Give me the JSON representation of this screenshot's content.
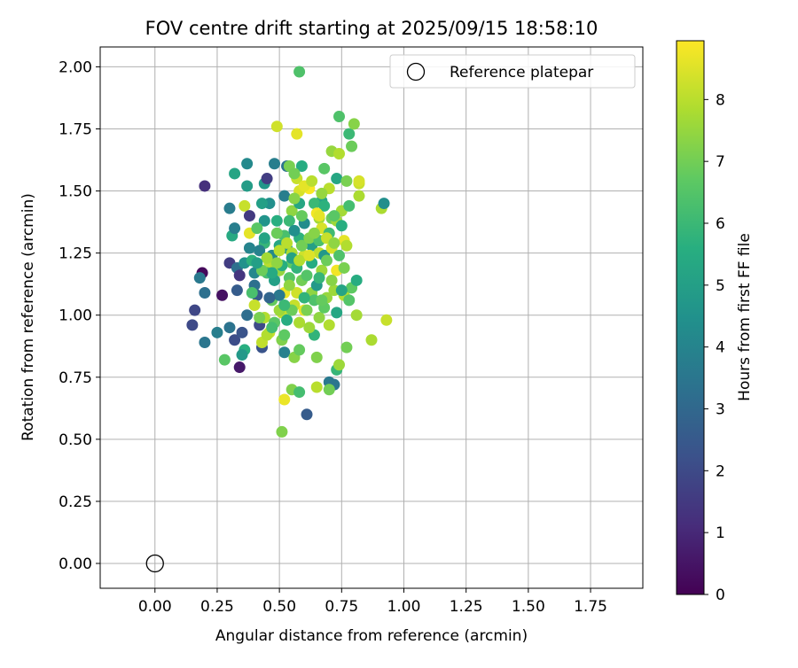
{
  "chart_data": {
    "type": "scatter",
    "title": "FOV centre drift starting at 2025/09/15 18:58:10",
    "xlabel": "Angular distance from reference (arcmin)",
    "ylabel": "Rotation from reference (arcmin)",
    "xlim": [
      -0.22,
      1.96
    ],
    "ylim": [
      -0.1,
      2.08
    ],
    "x_ticks": [
      "0.00",
      "0.25",
      "0.50",
      "0.75",
      "1.00",
      "1.25",
      "1.50",
      "1.75"
    ],
    "y_ticks": [
      "0.00",
      "0.25",
      "0.50",
      "0.75",
      "1.00",
      "1.25",
      "1.50",
      "1.75",
      "2.00"
    ],
    "grid": true,
    "legend": {
      "placement": "top-right",
      "entries": [
        "Reference platepar"
      ]
    },
    "reference_point": {
      "x": 0.0,
      "y": 0.0
    },
    "colorbar": {
      "label": "Hours from first FF file",
      "range": [
        0,
        8.95
      ],
      "ticks": [
        "0",
        "1",
        "2",
        "3",
        "4",
        "5",
        "6",
        "7",
        "8"
      ],
      "colormap": "viridis"
    },
    "series": [
      {
        "values": [
          [
            0.2,
            1.52,
            1.2
          ],
          [
            0.19,
            1.17,
            0.2
          ],
          [
            0.18,
            1.15,
            3.6
          ],
          [
            0.2,
            1.09,
            3.3
          ],
          [
            0.16,
            1.02,
            1.9
          ],
          [
            0.15,
            0.96,
            2.0
          ],
          [
            0.2,
            0.89,
            3.5
          ],
          [
            0.25,
            0.93,
            3.8
          ],
          [
            0.27,
            1.08,
            0.4
          ],
          [
            0.3,
            1.21,
            1.6
          ],
          [
            0.3,
            1.43,
            3.7
          ],
          [
            0.31,
            1.32,
            5.4
          ],
          [
            0.32,
            1.35,
            3.8
          ],
          [
            0.32,
            1.57,
            5.2
          ],
          [
            0.33,
            1.19,
            3.3
          ],
          [
            0.33,
            1.1,
            2.6
          ],
          [
            0.34,
            1.16,
            1.4
          ],
          [
            0.32,
            0.9,
            2.1
          ],
          [
            0.34,
            0.79,
            0.6
          ],
          [
            0.35,
            0.93,
            2.3
          ],
          [
            0.37,
            1.61,
            4.2
          ],
          [
            0.37,
            1.52,
            4.9
          ],
          [
            0.36,
            1.44,
            8.2
          ],
          [
            0.38,
            1.4,
            1.5
          ],
          [
            0.38,
            1.33,
            8.6
          ],
          [
            0.36,
            1.21,
            4.5
          ],
          [
            0.37,
            1.0,
            3.2
          ],
          [
            0.36,
            0.86,
            5.6
          ],
          [
            0.35,
            0.84,
            4.8
          ],
          [
            0.28,
            0.82,
            6.6
          ],
          [
            0.3,
            0.95,
            3.4
          ],
          [
            0.39,
            1.22,
            5.7
          ],
          [
            0.4,
            1.12,
            3.3
          ],
          [
            0.41,
            1.08,
            2.5
          ],
          [
            0.42,
            0.96,
            2.0
          ],
          [
            0.43,
            0.87,
            2.3
          ],
          [
            0.43,
            0.89,
            8.1
          ],
          [
            0.44,
            0.99,
            7.9
          ],
          [
            0.44,
            1.29,
            5.9
          ],
          [
            0.44,
            1.38,
            4.6
          ],
          [
            0.44,
            1.53,
            4.7
          ],
          [
            0.45,
            1.55,
            1.6
          ],
          [
            0.46,
            1.45,
            4.4
          ],
          [
            0.46,
            1.21,
            8.0
          ],
          [
            0.47,
            1.06,
            6.8
          ],
          [
            0.46,
            0.93,
            8.2
          ],
          [
            0.48,
            1.61,
            3.8
          ],
          [
            0.49,
            1.76,
            8.3
          ],
          [
            0.49,
            1.38,
            5.6
          ],
          [
            0.5,
            1.28,
            5.3
          ],
          [
            0.5,
            1.18,
            7.5
          ],
          [
            0.51,
            1.01,
            8.1
          ],
          [
            0.51,
            0.9,
            7.2
          ],
          [
            0.52,
            0.85,
            3.9
          ],
          [
            0.53,
            0.98,
            5.5
          ],
          [
            0.52,
            1.09,
            8.7
          ],
          [
            0.52,
            1.32,
            6.3
          ],
          [
            0.52,
            1.48,
            3.8
          ],
          [
            0.53,
            1.6,
            3.4
          ],
          [
            0.54,
            1.6,
            7.1
          ],
          [
            0.55,
            1.42,
            7.4
          ],
          [
            0.55,
            1.21,
            6.7
          ],
          [
            0.56,
            1.04,
            8.2
          ],
          [
            0.56,
            0.83,
            7.3
          ],
          [
            0.55,
            0.7,
            7.2
          ],
          [
            0.52,
            0.66,
            8.7
          ],
          [
            0.51,
            0.53,
            7.2
          ],
          [
            0.57,
            1.73,
            8.6
          ],
          [
            0.57,
            1.55,
            8.2
          ],
          [
            0.58,
            1.45,
            5.3
          ],
          [
            0.58,
            1.31,
            5.7
          ],
          [
            0.59,
            1.14,
            7.0
          ],
          [
            0.58,
            0.97,
            7.8
          ],
          [
            0.58,
            0.86,
            6.8
          ],
          [
            0.58,
            0.69,
            6.2
          ],
          [
            0.58,
            1.98,
            6.4
          ],
          [
            0.59,
            1.6,
            5.5
          ],
          [
            0.6,
            1.37,
            4.3
          ],
          [
            0.6,
            1.24,
            8.3
          ],
          [
            0.6,
            1.02,
            8.7
          ],
          [
            0.61,
            0.6,
            2.6
          ],
          [
            0.62,
            1.51,
            8.9
          ],
          [
            0.63,
            1.28,
            5.0
          ],
          [
            0.63,
            1.09,
            7.4
          ],
          [
            0.64,
            0.92,
            5.8
          ],
          [
            0.65,
            0.83,
            7.2
          ],
          [
            0.65,
            0.71,
            8.0
          ],
          [
            0.66,
            1.39,
            7.7
          ],
          [
            0.66,
            1.25,
            8.1
          ],
          [
            0.66,
            0.99,
            7.4
          ],
          [
            0.67,
            1.46,
            5.2
          ],
          [
            0.67,
            1.35,
            8.4
          ],
          [
            0.68,
            1.59,
            6.6
          ],
          [
            0.68,
            1.24,
            4.7
          ],
          [
            0.69,
            1.07,
            7.5
          ],
          [
            0.7,
            1.51,
            8.0
          ],
          [
            0.7,
            0.96,
            7.9
          ],
          [
            0.7,
            0.73,
            3.6
          ],
          [
            0.71,
            1.66,
            7.5
          ],
          [
            0.71,
            1.39,
            6.9
          ],
          [
            0.71,
            1.27,
            8.4
          ],
          [
            0.72,
            1.1,
            7.6
          ],
          [
            0.72,
            0.72,
            3.5
          ],
          [
            0.73,
            1.55,
            5.3
          ],
          [
            0.73,
            1.38,
            7.6
          ],
          [
            0.73,
            1.18,
            8.8
          ],
          [
            0.73,
            1.01,
            5.3
          ],
          [
            0.73,
            0.78,
            5.9
          ],
          [
            0.74,
            0.8,
            7.6
          ],
          [
            0.74,
            1.65,
            7.9
          ],
          [
            0.74,
            1.8,
            6.4
          ],
          [
            0.75,
            1.42,
            7.7
          ],
          [
            0.76,
            1.3,
            8.6
          ],
          [
            0.76,
            1.08,
            7.9
          ],
          [
            0.77,
            1.54,
            7.1
          ],
          [
            0.77,
            0.87,
            7.0
          ],
          [
            0.78,
            1.73,
            6.0
          ],
          [
            0.78,
            1.44,
            6.2
          ],
          [
            0.79,
            1.11,
            6.7
          ],
          [
            0.79,
            1.68,
            6.9
          ],
          [
            0.8,
            1.77,
            7.3
          ],
          [
            0.81,
            1.0,
            7.7
          ],
          [
            0.81,
            1.14,
            5.5
          ],
          [
            0.82,
            1.53,
            8.2
          ],
          [
            0.82,
            1.48,
            7.8
          ],
          [
            0.82,
            1.54,
            8.4
          ],
          [
            0.87,
            0.9,
            7.8
          ],
          [
            0.91,
            1.43,
            7.8
          ],
          [
            0.92,
            1.45,
            4.4
          ],
          [
            0.93,
            0.98,
            8.2
          ],
          [
            0.4,
            1.04,
            8.2
          ],
          [
            0.42,
            0.99,
            7.1
          ],
          [
            0.45,
            1.17,
            6.2
          ],
          [
            0.47,
            1.24,
            4.2
          ],
          [
            0.48,
            1.14,
            5.0
          ],
          [
            0.49,
            1.33,
            6.9
          ],
          [
            0.5,
            1.02,
            7.6
          ],
          [
            0.51,
            1.2,
            5.6
          ],
          [
            0.53,
            1.27,
            4.8
          ],
          [
            0.54,
            1.15,
            6.5
          ],
          [
            0.54,
            1.38,
            6.0
          ],
          [
            0.55,
            1.25,
            7.8
          ],
          [
            0.56,
            1.34,
            4.4
          ],
          [
            0.57,
            1.19,
            5.8
          ],
          [
            0.59,
            1.28,
            7.0
          ],
          [
            0.61,
            1.16,
            6.5
          ],
          [
            0.62,
            1.31,
            7.2
          ],
          [
            0.63,
            1.21,
            5.5
          ],
          [
            0.64,
            1.45,
            6.0
          ],
          [
            0.65,
            1.12,
            4.8
          ],
          [
            0.66,
            1.3,
            6.3
          ],
          [
            0.67,
            1.18,
            7.6
          ],
          [
            0.68,
            1.44,
            5.7
          ],
          [
            0.69,
            1.22,
            6.9
          ],
          [
            0.7,
            1.33,
            6.1
          ],
          [
            0.71,
            1.14,
            7.3
          ],
          [
            0.72,
            1.4,
            6.6
          ],
          [
            0.74,
            1.24,
            6.4
          ],
          [
            0.75,
            1.36,
            5.6
          ],
          [
            0.76,
            1.19,
            7.1
          ],
          [
            0.58,
            1.5,
            8.4
          ],
          [
            0.6,
            1.52,
            8.6
          ],
          [
            0.63,
            1.54,
            8.0
          ],
          [
            0.65,
            1.41,
            8.8
          ],
          [
            0.67,
            1.49,
            7.5
          ],
          [
            0.56,
            1.47,
            7.3
          ],
          [
            0.53,
            1.29,
            8.0
          ],
          [
            0.5,
            1.08,
            3.6
          ],
          [
            0.48,
            0.97,
            6.6
          ],
          [
            0.46,
            1.07,
            2.9
          ],
          [
            0.44,
            1.31,
            5.2
          ],
          [
            0.42,
            1.26,
            3.9
          ],
          [
            0.4,
            1.17,
            4.1
          ],
          [
            0.39,
            1.09,
            6.3
          ],
          [
            0.38,
            1.27,
            4.0
          ],
          [
            0.41,
            1.35,
            6.6
          ],
          [
            0.43,
            1.45,
            5.0
          ],
          [
            0.45,
            0.92,
            7.9
          ],
          [
            0.47,
            0.95,
            6.2
          ],
          [
            0.52,
            0.92,
            6.7
          ],
          [
            0.55,
            1.02,
            6.9
          ],
          [
            0.57,
            1.09,
            8.3
          ],
          [
            0.61,
            1.02,
            7.1
          ],
          [
            0.64,
            1.06,
            6.4
          ],
          [
            0.66,
            1.15,
            5.9
          ],
          [
            0.68,
            1.03,
            6.7
          ],
          [
            0.7,
            0.7,
            7.0
          ],
          [
            0.69,
            1.31,
            8.2
          ],
          [
            0.72,
            1.29,
            7.4
          ],
          [
            0.75,
            1.1,
            5.2
          ],
          [
            0.77,
            1.28,
            7.9
          ],
          [
            0.78,
            1.06,
            6.5
          ],
          [
            0.62,
            0.95,
            7.6
          ],
          [
            0.59,
            1.4,
            6.8
          ],
          [
            0.56,
            1.57,
            7.0
          ],
          [
            0.55,
            1.23,
            5.1
          ],
          [
            0.49,
            1.21,
            7.4
          ],
          [
            0.47,
            1.17,
            5.4
          ],
          [
            0.45,
            1.23,
            7.7
          ],
          [
            0.43,
            1.18,
            6.9
          ],
          [
            0.41,
            1.21,
            5.0
          ],
          [
            0.5,
            1.26,
            8.0
          ],
          [
            0.52,
            1.04,
            6.0
          ],
          [
            0.54,
            1.12,
            7.4
          ],
          [
            0.58,
            1.22,
            7.9
          ],
          [
            0.6,
            1.07,
            5.8
          ],
          [
            0.62,
            1.24,
            8.5
          ],
          [
            0.64,
            1.33,
            7.3
          ],
          [
            0.66,
            1.4,
            8.6
          ],
          [
            0.67,
            1.06,
            6.8
          ]
        ]
      }
    ]
  }
}
